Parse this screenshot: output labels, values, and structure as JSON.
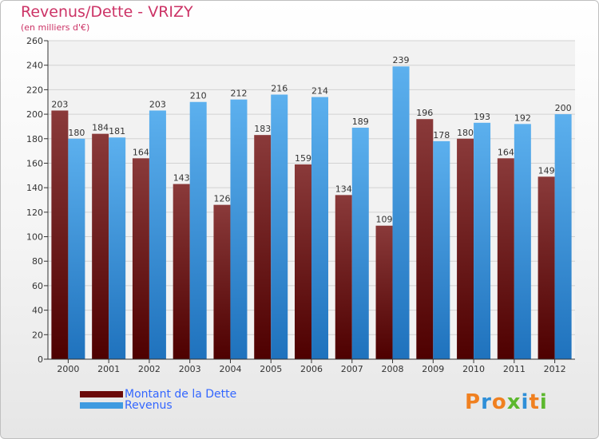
{
  "header": {
    "title": "Revenus/Dette - VRIZY",
    "subtitle": "(en milliers d'€)"
  },
  "legend": [
    {
      "label": "Montant de la Dette",
      "color": "#6b0a0a"
    },
    {
      "label": "Revenus",
      "color": "#3f9be0"
    }
  ],
  "logo": {
    "text": "Proxiti",
    "letters": [
      {
        "ch": "P",
        "color": "#f08020"
      },
      {
        "ch": "r",
        "color": "#2f8fd8"
      },
      {
        "ch": "o",
        "color": "#f08020"
      },
      {
        "ch": "x",
        "color": "#5cb82e"
      },
      {
        "ch": "i",
        "color": "#2f8fd8"
      },
      {
        "ch": "t",
        "color": "#f08020"
      },
      {
        "ch": "i",
        "color": "#5cb82e"
      }
    ]
  },
  "chart_data": {
    "type": "bar",
    "title": "Revenus/Dette - VRIZY",
    "ylabel": "(en milliers d'€)",
    "categories": [
      "2000",
      "2001",
      "2002",
      "2003",
      "2004",
      "2005",
      "2006",
      "2007",
      "2008",
      "2009",
      "2010",
      "2011",
      "2012"
    ],
    "series": [
      {
        "name": "Montant de la Dette",
        "color": "#6b0a0a",
        "values": [
          203,
          184,
          164,
          143,
          126,
          183,
          159,
          134,
          109,
          196,
          180,
          164,
          149
        ]
      },
      {
        "name": "Revenus",
        "color": "#3f9be0",
        "values": [
          180,
          181,
          203,
          210,
          212,
          216,
          214,
          189,
          239,
          178,
          193,
          192,
          200
        ]
      }
    ],
    "ylim": [
      0,
      260
    ],
    "yticks": [
      0,
      20,
      40,
      60,
      80,
      100,
      120,
      140,
      160,
      180,
      200,
      220,
      240,
      260
    ],
    "grid": true,
    "legend_position": "bottom-left"
  }
}
